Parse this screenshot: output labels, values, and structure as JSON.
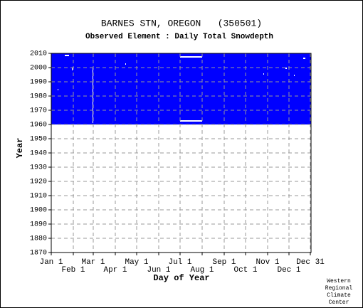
{
  "chart_data": {
    "type": "coverage",
    "title": "BARNES STN, OREGON   (350501)",
    "subtitle": "Observed Element : Daily Total Snowdepth",
    "x_label": "Day of Year",
    "y_label": "Year",
    "credit": [
      "Western",
      "Regional",
      "Climate",
      "Center"
    ],
    "color": "#0000ff",
    "grid": true,
    "xlim": [
      1,
      366
    ],
    "ylim": [
      1870,
      2010
    ],
    "xticks": [
      {
        "value": 1,
        "label": "Jan 1"
      },
      {
        "value": 32,
        "label": "Feb 1"
      },
      {
        "value": 60,
        "label": "Mar 1"
      },
      {
        "value": 91,
        "label": "Apr 1"
      },
      {
        "value": 121,
        "label": "May 1"
      },
      {
        "value": 152,
        "label": "Jun 1"
      },
      {
        "value": 182,
        "label": "Jul 1"
      },
      {
        "value": 213,
        "label": "Aug 1"
      },
      {
        "value": 244,
        "label": "Sep 1"
      },
      {
        "value": 274,
        "label": "Oct 1"
      },
      {
        "value": 305,
        "label": "Nov 1"
      },
      {
        "value": 335,
        "label": "Dec 1"
      },
      {
        "value": 365,
        "label": "Dec 31"
      }
    ],
    "yticks": [
      1870,
      1880,
      1890,
      1900,
      1910,
      1920,
      1930,
      1940,
      1950,
      1960,
      1970,
      1980,
      1990,
      2000,
      2010
    ],
    "coverage": {
      "x": [
        1,
        366
      ],
      "y": [
        1960,
        2010
      ]
    },
    "gaps": [
      {
        "x": [
          182,
          213
        ],
        "y": [
          2007,
          2008
        ]
      },
      {
        "x": [
          182,
          213
        ],
        "y": [
          1962,
          1963
        ]
      },
      {
        "x": [
          59,
          60
        ],
        "y": [
          1961,
          2000
        ]
      },
      {
        "x": [
          30,
          31
        ],
        "y": [
          1998,
          2000
        ]
      },
      {
        "x": [
          10,
          11
        ],
        "y": [
          1984,
          1985
        ]
      },
      {
        "x": [
          105,
          106
        ],
        "y": [
          2002,
          2003
        ]
      },
      {
        "x": [
          299,
          300
        ],
        "y": [
          1995,
          1996
        ]
      },
      {
        "x": [
          330,
          332
        ],
        "y": [
          1999,
          2000
        ]
      },
      {
        "x": [
          342,
          343
        ],
        "y": [
          1994,
          1995
        ]
      },
      {
        "x": [
          20,
          26
        ],
        "y": [
          2008,
          2009
        ]
      },
      {
        "x": [
          355,
          358
        ],
        "y": [
          2006,
          2007
        ]
      }
    ]
  }
}
